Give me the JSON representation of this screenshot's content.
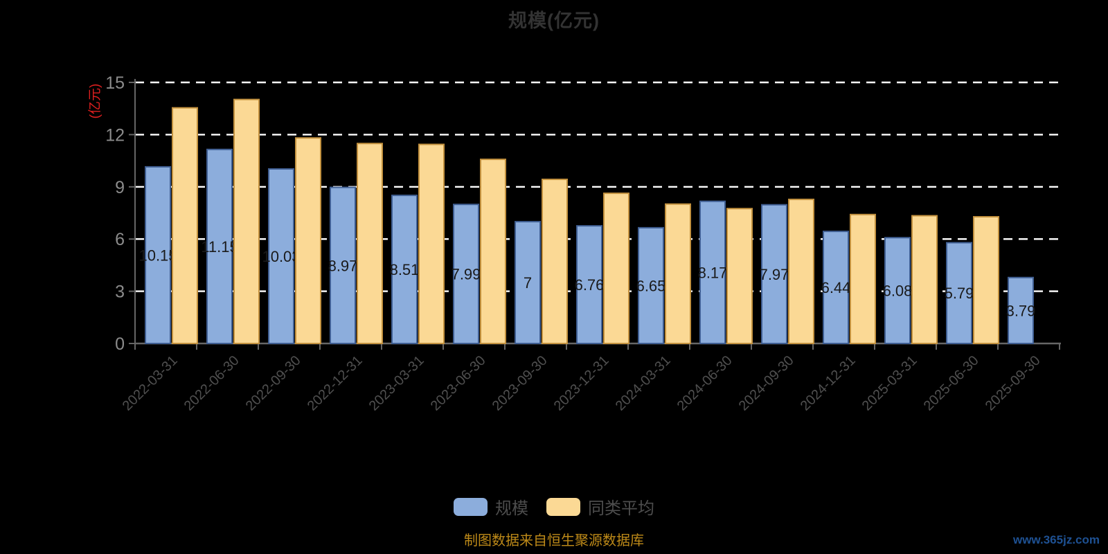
{
  "title": "规模(亿元)",
  "watermark": "www.365jz.com",
  "footer": {
    "source_note": "制图数据来自恒生聚源数据库"
  },
  "colors": {
    "background": "#000000",
    "title_text": "#333333",
    "scale_bar_fill": "#8CADDC",
    "scale_bar_border": "#3F5E92",
    "peer_bar_fill": "#FBD995",
    "peer_bar_border": "#C3913E",
    "gridline": "#FFFFFF",
    "axis_line": "#666666",
    "y_tick_label": "#8C8C8C",
    "x_tick_label": "#4F4F4F",
    "y_axis_name": "#E01F1F",
    "bar_value_label": "#1A1A1A",
    "legend_text": "#4D4D4D",
    "footer_text": "#BE8A18",
    "watermark_text": "#1E5193"
  },
  "chart_data": {
    "type": "bar",
    "title": "规模(亿元)",
    "y_axis_name": "(亿元)",
    "xlabel": "",
    "ylabel": "(亿元)",
    "ylim": [
      0,
      15
    ],
    "y_ticks": [
      0,
      3,
      6,
      9,
      12,
      15
    ],
    "grid": true,
    "gridline_style": "dashed-white",
    "legend_position": "bottom",
    "categories": [
      "2022-03-31",
      "2022-06-30",
      "2022-09-30",
      "2022-12-31",
      "2023-03-31",
      "2023-06-30",
      "2023-09-30",
      "2023-12-31",
      "2024-03-31",
      "2024-06-30",
      "2024-09-30",
      "2024-12-31",
      "2025-03-31",
      "2025-06-30",
      "2025-09-30"
    ],
    "series": [
      {
        "name": "规模",
        "values": [
          10.15,
          11.15,
          10.03,
          8.97,
          8.51,
          7.99,
          7,
          6.76,
          6.65,
          8.17,
          7.97,
          6.44,
          6.08,
          5.79,
          3.79
        ],
        "labels": [
          "10.15",
          "11.15",
          "10.03",
          "8.97",
          "8.51",
          "7.99",
          "7",
          "6.76",
          "6.65",
          "8.17",
          "7.97",
          "6.44",
          "6.08",
          "5.79",
          "3.79"
        ]
      },
      {
        "name": "同类平均",
        "values": [
          13.54,
          14.02,
          11.81,
          11.49,
          11.44,
          10.58,
          9.43,
          8.63,
          8.01,
          7.75,
          8.28,
          7.41,
          7.34,
          7.28,
          null
        ]
      }
    ]
  }
}
